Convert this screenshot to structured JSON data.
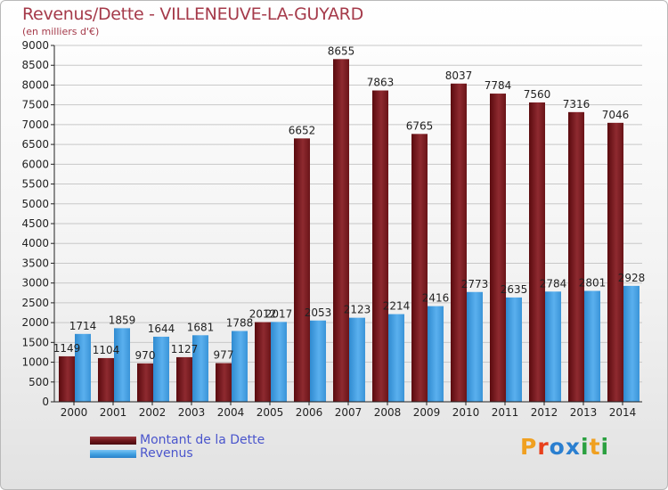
{
  "header": {
    "title": "Revenus/Dette - VILLENEUVE-LA-GUYARD",
    "subtitle": "(en milliers d'€)"
  },
  "legend": {
    "items": [
      {
        "label": "Montant de la Dette",
        "color": "#7a1a1e"
      },
      {
        "label": "Revenus",
        "color": "#3f9fe0"
      }
    ]
  },
  "logo": {
    "text": "Proxiti",
    "letters": [
      {
        "ch": "P",
        "color": "#f0a020"
      },
      {
        "ch": "r",
        "color": "#e8401c"
      },
      {
        "ch": "o",
        "color": "#2a7fd0"
      },
      {
        "ch": "x",
        "color": "#2a7fd0"
      },
      {
        "ch": "i",
        "color": "#2aa040"
      },
      {
        "ch": "t",
        "color": "#f0a020"
      },
      {
        "ch": "i",
        "color": "#2aa040"
      }
    ]
  },
  "chart_data": {
    "type": "bar",
    "title": "Revenus/Dette - VILLENEUVE-LA-GUYARD",
    "subtitle": "(en milliers d'€)",
    "categories": [
      "2000",
      "2001",
      "2002",
      "2003",
      "2004",
      "2005",
      "2006",
      "2007",
      "2008",
      "2009",
      "2010",
      "2011",
      "2012",
      "2013",
      "2014"
    ],
    "series": [
      {
        "name": "Montant de la Dette",
        "color": "#7a1a1e",
        "values": [
          1149,
          1104,
          970,
          1127,
          977,
          2012,
          6652,
          8655,
          7863,
          6765,
          8037,
          7784,
          7560,
          7316,
          7046
        ],
        "labels": [
          "1149",
          "1104",
          "970",
          "1127",
          "977",
          "2012",
          "6652",
          "8655",
          "7863",
          "6765",
          "8037",
          "7784",
          "7560",
          "7316",
          "7046"
        ]
      },
      {
        "name": "Revenus",
        "color": "#3f9fe0",
        "values": [
          1714,
          1859,
          1644,
          1681,
          1788,
          2017,
          2053,
          2123,
          2214,
          2416,
          2773,
          2635,
          2784,
          2801,
          2928
        ],
        "labels": [
          "1714",
          "1859",
          "1644",
          "1681",
          "1788",
          "2017",
          "2053",
          "2123",
          "2214",
          "2416",
          "2773",
          "2635",
          "2784",
          "2801",
          "2928"
        ]
      }
    ],
    "ylim": [
      0,
      9000
    ],
    "yticks": [
      "0",
      "500",
      "1000",
      "1500",
      "2000",
      "2500",
      "3000",
      "3500",
      "4000",
      "4500",
      "5000",
      "5500",
      "6000",
      "6500",
      "7000",
      "7500",
      "8000",
      "8500",
      "9000"
    ],
    "grid": true,
    "legend_position": "bottom-left"
  }
}
